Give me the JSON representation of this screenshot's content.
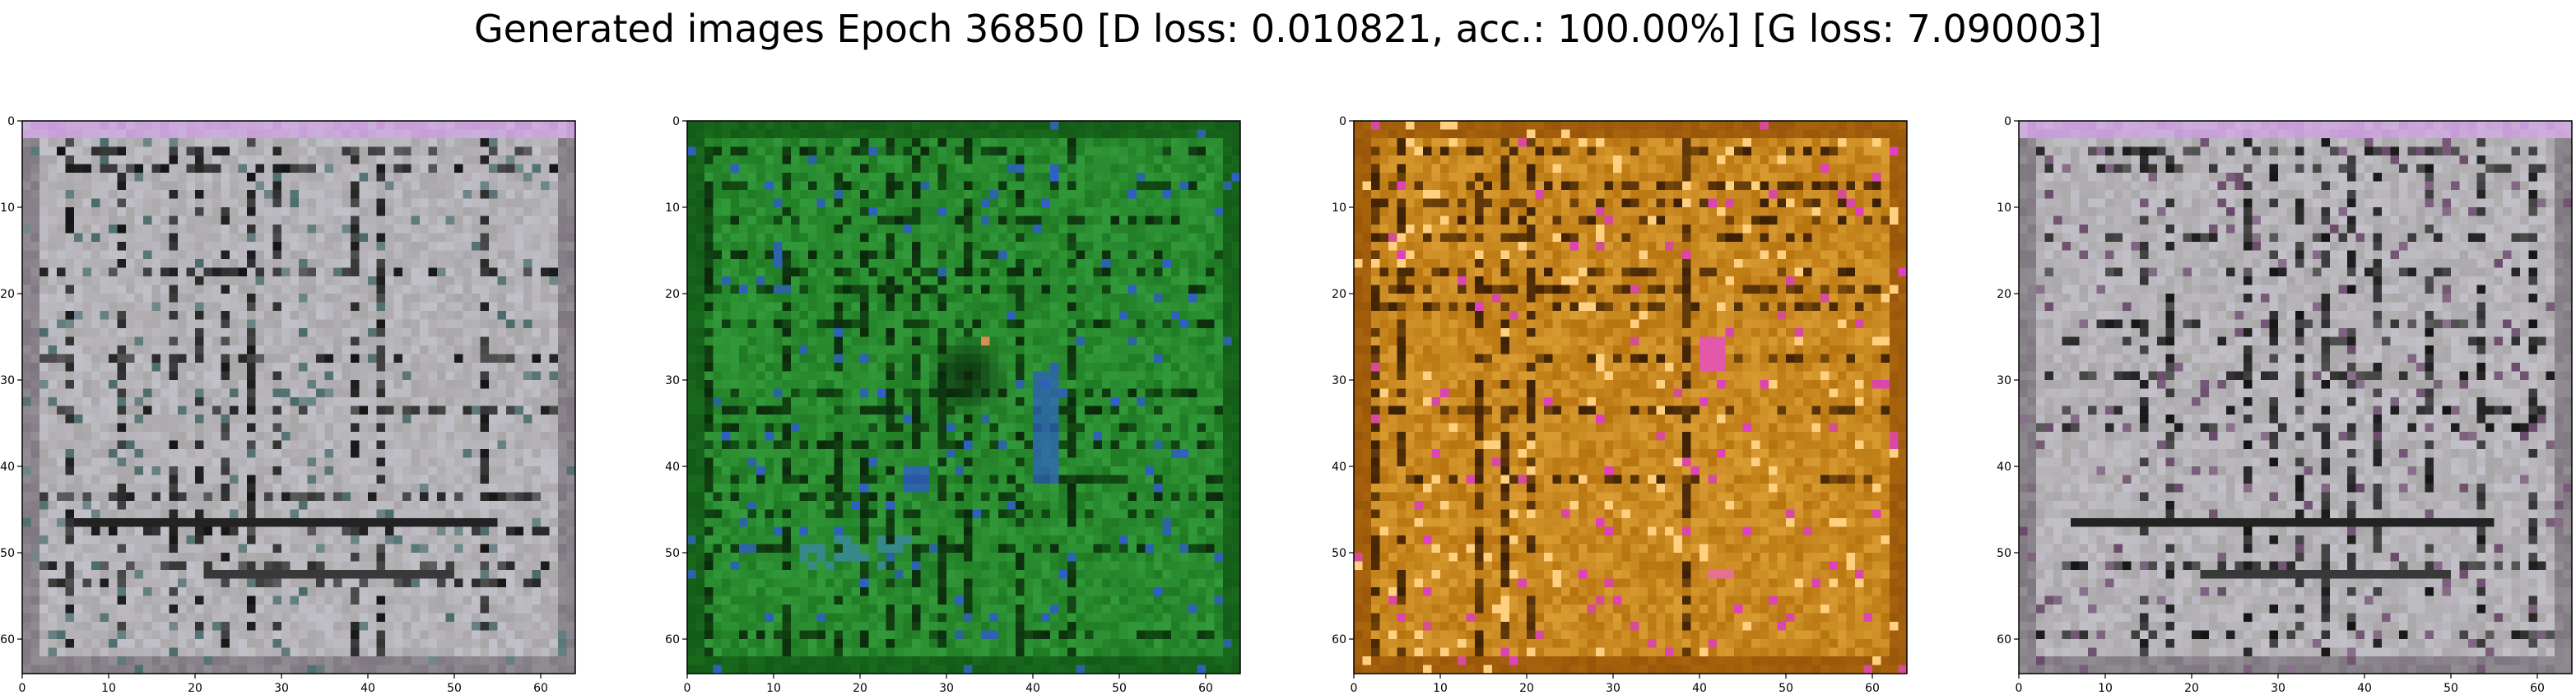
{
  "figure": {
    "title": "Generated images Epoch 36850 [D loss: 0.010821, acc.: 100.00%] [G loss: 7.090003]"
  },
  "chart_data": [
    {
      "type": "heatmap",
      "name": "generated-image-1",
      "xlim": [
        0,
        64
      ],
      "ylim": [
        64,
        0
      ],
      "xticks": [
        0,
        10,
        20,
        30,
        40,
        50,
        60
      ],
      "yticks": [
        0,
        10,
        20,
        30,
        40,
        50,
        60
      ],
      "palette": {
        "base": "#a9a6a8",
        "light": "#d2d2de",
        "dark": "#141414",
        "accent": "#4a6b6a",
        "border": "#7e7680",
        "top_tint": "#c79ad9"
      }
    },
    {
      "type": "heatmap",
      "name": "generated-image-2",
      "xlim": [
        0,
        64
      ],
      "ylim": [
        64,
        0
      ],
      "xticks": [
        0,
        10,
        20,
        30,
        40,
        50,
        60
      ],
      "yticks": [
        0,
        10,
        20,
        30,
        40,
        50,
        60
      ],
      "palette": {
        "base": "#1f7a23",
        "light": "#3fb04a",
        "dark": "#0b2a0c",
        "accent": "#2f5fc8",
        "border": "#145a18",
        "spot": "#e08a50"
      }
    },
    {
      "type": "heatmap",
      "name": "generated-image-3",
      "xlim": [
        0,
        64
      ],
      "ylim": [
        64,
        0
      ],
      "xticks": [
        0,
        10,
        20,
        30,
        40,
        50,
        60
      ],
      "yticks": [
        0,
        10,
        20,
        30,
        40,
        50,
        60
      ],
      "palette": {
        "base": "#b8740f",
        "light": "#f0b84a",
        "dark": "#3a1e05",
        "accent": "#e040c0",
        "border": "#9a560a",
        "spot": "#ffd080"
      }
    },
    {
      "type": "heatmap",
      "name": "generated-image-4",
      "xlim": [
        0,
        64
      ],
      "ylim": [
        64,
        0
      ],
      "xticks": [
        0,
        10,
        20,
        30,
        40,
        50,
        60
      ],
      "yticks": [
        0,
        10,
        20,
        30,
        40,
        50,
        60
      ],
      "palette": {
        "base": "#a9a6a8",
        "light": "#d4d2de",
        "dark": "#141414",
        "accent": "#6a4a6a",
        "border": "#7e7680",
        "top_tint": "#c79ad9"
      }
    }
  ]
}
